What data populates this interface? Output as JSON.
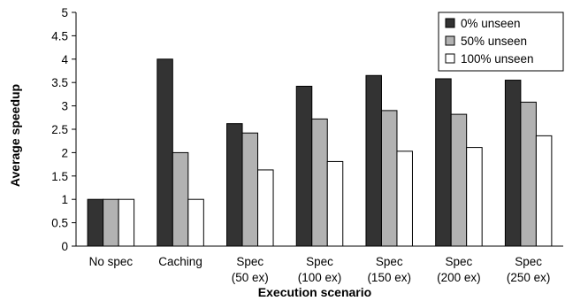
{
  "chart_data": {
    "type": "bar",
    "title": "",
    "xlabel": "Execution scenario",
    "ylabel": "Average speedup",
    "ylim": [
      0,
      5
    ],
    "yticks": [
      "0",
      "0.5",
      "1",
      "1.5",
      "2",
      "2.5",
      "3",
      "3.5",
      "4",
      "4.5",
      "5"
    ],
    "grid": false,
    "legend_position": "top-right",
    "categories": [
      [
        "No spec"
      ],
      [
        "Caching"
      ],
      [
        "Spec",
        "(50 ex)"
      ],
      [
        "Spec",
        "(100 ex)"
      ],
      [
        "Spec",
        "(150 ex)"
      ],
      [
        "Spec",
        "(200 ex)"
      ],
      [
        "Spec",
        "(250 ex)"
      ]
    ],
    "series": [
      {
        "name": "0% unseen",
        "color": "#333333",
        "values": [
          1.0,
          4.0,
          2.62,
          3.42,
          3.65,
          3.58,
          3.55
        ]
      },
      {
        "name": "50% unseen",
        "color": "#b2b2b2",
        "values": [
          1.0,
          2.0,
          2.42,
          2.72,
          2.9,
          2.82,
          3.08
        ]
      },
      {
        "name": "100% unseen",
        "color": "#ffffff",
        "values": [
          1.0,
          1.0,
          1.63,
          1.81,
          2.03,
          2.11,
          2.36
        ]
      }
    ]
  }
}
